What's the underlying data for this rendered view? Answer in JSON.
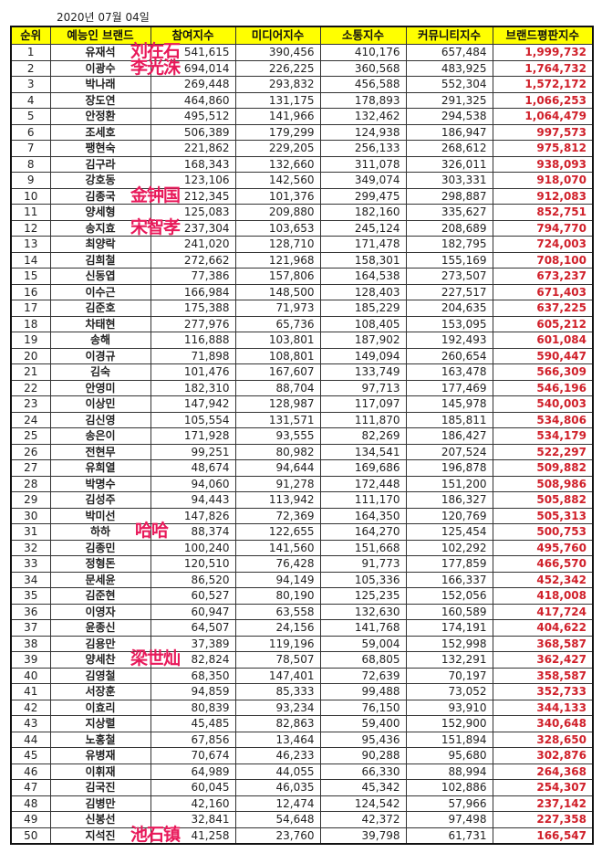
{
  "date": "2020년 07월 04일",
  "headers": [
    "순위",
    "예능인 브랜드",
    "참여지수",
    "미디어지수",
    "소통지수",
    "커뮤니티지수",
    "브랜드평판지수"
  ],
  "colors": {
    "header_bg": "#ffff00",
    "brand_value": "#d0202a",
    "annotation": "#e8195a"
  },
  "rows": [
    [
      "1",
      "유재석",
      "541,615",
      "390,456",
      "410,176",
      "657,484",
      "1,999,732"
    ],
    [
      "2",
      "이광수",
      "694,014",
      "226,225",
      "360,568",
      "483,925",
      "1,764,732"
    ],
    [
      "3",
      "박나래",
      "269,448",
      "293,832",
      "456,588",
      "552,304",
      "1,572,172"
    ],
    [
      "4",
      "장도연",
      "464,860",
      "131,175",
      "178,893",
      "291,325",
      "1,066,253"
    ],
    [
      "5",
      "안정환",
      "495,512",
      "141,966",
      "132,462",
      "294,538",
      "1,064,479"
    ],
    [
      "6",
      "조세호",
      "506,389",
      "179,299",
      "124,938",
      "186,947",
      "997,573"
    ],
    [
      "7",
      "팽현숙",
      "221,862",
      "229,205",
      "256,133",
      "268,612",
      "975,812"
    ],
    [
      "8",
      "김구라",
      "168,343",
      "132,660",
      "311,078",
      "326,011",
      "938,093"
    ],
    [
      "9",
      "강호동",
      "123,106",
      "142,560",
      "349,074",
      "303,331",
      "918,070"
    ],
    [
      "10",
      "김종국",
      "212,345",
      "101,376",
      "299,475",
      "298,887",
      "912,083"
    ],
    [
      "11",
      "양세형",
      "125,083",
      "209,880",
      "182,160",
      "335,627",
      "852,751"
    ],
    [
      "12",
      "송지효",
      "237,304",
      "103,653",
      "245,124",
      "208,689",
      "794,770"
    ],
    [
      "13",
      "최양락",
      "241,020",
      "128,710",
      "171,478",
      "182,795",
      "724,003"
    ],
    [
      "14",
      "김희철",
      "272,662",
      "121,968",
      "158,301",
      "155,169",
      "708,100"
    ],
    [
      "15",
      "신동엽",
      "77,386",
      "157,806",
      "164,538",
      "273,507",
      "673,237"
    ],
    [
      "16",
      "이수근",
      "166,984",
      "148,500",
      "128,403",
      "227,517",
      "671,403"
    ],
    [
      "17",
      "김준호",
      "175,388",
      "71,973",
      "185,229",
      "204,635",
      "637,225"
    ],
    [
      "18",
      "차태현",
      "277,976",
      "65,736",
      "108,405",
      "153,095",
      "605,212"
    ],
    [
      "19",
      "송해",
      "116,888",
      "103,801",
      "187,902",
      "192,493",
      "601,084"
    ],
    [
      "20",
      "이경규",
      "71,898",
      "108,801",
      "149,094",
      "260,654",
      "590,447"
    ],
    [
      "21",
      "김숙",
      "101,476",
      "167,607",
      "133,749",
      "163,478",
      "566,309"
    ],
    [
      "22",
      "안영미",
      "182,310",
      "88,704",
      "97,713",
      "177,469",
      "546,196"
    ],
    [
      "23",
      "이상민",
      "147,942",
      "128,987",
      "117,097",
      "145,978",
      "540,003"
    ],
    [
      "24",
      "김신영",
      "105,554",
      "131,571",
      "111,870",
      "185,811",
      "534,806"
    ],
    [
      "25",
      "송은이",
      "171,928",
      "93,555",
      "82,269",
      "186,427",
      "534,179"
    ],
    [
      "26",
      "전현무",
      "99,251",
      "80,982",
      "134,541",
      "207,524",
      "522,297"
    ],
    [
      "27",
      "유희열",
      "48,674",
      "94,644",
      "169,686",
      "196,878",
      "509,882"
    ],
    [
      "28",
      "박명수",
      "94,060",
      "91,278",
      "172,448",
      "151,200",
      "508,986"
    ],
    [
      "29",
      "김성주",
      "94,443",
      "113,942",
      "111,170",
      "186,327",
      "505,882"
    ],
    [
      "30",
      "박미선",
      "147,826",
      "72,369",
      "164,350",
      "120,769",
      "505,313"
    ],
    [
      "31",
      "하하",
      "88,374",
      "122,655",
      "164,270",
      "125,454",
      "500,753"
    ],
    [
      "32",
      "김종민",
      "100,240",
      "141,560",
      "151,668",
      "102,292",
      "495,760"
    ],
    [
      "33",
      "정형돈",
      "120,510",
      "76,428",
      "91,773",
      "177,859",
      "466,570"
    ],
    [
      "34",
      "문세윤",
      "86,520",
      "94,149",
      "105,336",
      "166,337",
      "452,342"
    ],
    [
      "35",
      "김준현",
      "60,527",
      "80,190",
      "125,235",
      "152,056",
      "418,008"
    ],
    [
      "36",
      "이영자",
      "60,947",
      "63,558",
      "132,630",
      "160,589",
      "417,724"
    ],
    [
      "37",
      "윤종신",
      "64,507",
      "24,156",
      "141,768",
      "174,191",
      "404,622"
    ],
    [
      "38",
      "김용만",
      "37,389",
      "119,196",
      "59,004",
      "152,998",
      "368,587"
    ],
    [
      "39",
      "양세찬",
      "82,824",
      "78,507",
      "68,805",
      "132,291",
      "362,427"
    ],
    [
      "40",
      "김영철",
      "68,350",
      "147,401",
      "72,639",
      "70,197",
      "358,587"
    ],
    [
      "41",
      "서장훈",
      "94,859",
      "85,333",
      "99,488",
      "73,052",
      "352,733"
    ],
    [
      "42",
      "이효리",
      "80,839",
      "93,234",
      "76,150",
      "93,910",
      "344,133"
    ],
    [
      "43",
      "지상렬",
      "45,485",
      "82,863",
      "59,400",
      "152,900",
      "340,648"
    ],
    [
      "44",
      "노홍철",
      "67,856",
      "13,464",
      "95,436",
      "151,894",
      "328,650"
    ],
    [
      "45",
      "유병재",
      "70,674",
      "46,233",
      "90,288",
      "95,680",
      "302,876"
    ],
    [
      "46",
      "이휘재",
      "64,989",
      "44,055",
      "66,330",
      "88,994",
      "264,368"
    ],
    [
      "47",
      "김국진",
      "60,045",
      "46,035",
      "45,342",
      "102,886",
      "254,307"
    ],
    [
      "48",
      "김병만",
      "42,160",
      "12,474",
      "124,542",
      "57,966",
      "237,142"
    ],
    [
      "49",
      "신봉선",
      "32,841",
      "54,648",
      "42,372",
      "97,498",
      "227,358"
    ],
    [
      "50",
      "지석진",
      "41,258",
      "23,760",
      "39,798",
      "61,731",
      "166,547"
    ]
  ],
  "annotations": [
    {
      "row": "1",
      "text": "刘在石"
    },
    {
      "row": "2",
      "text": "李光洙"
    },
    {
      "row": "10",
      "text": "金钟国"
    },
    {
      "row": "12",
      "text": "宋智孝"
    },
    {
      "row": "31",
      "text": "哈哈"
    },
    {
      "row": "39",
      "text": "梁世灿"
    },
    {
      "row": "50",
      "text": "池石镇"
    }
  ]
}
